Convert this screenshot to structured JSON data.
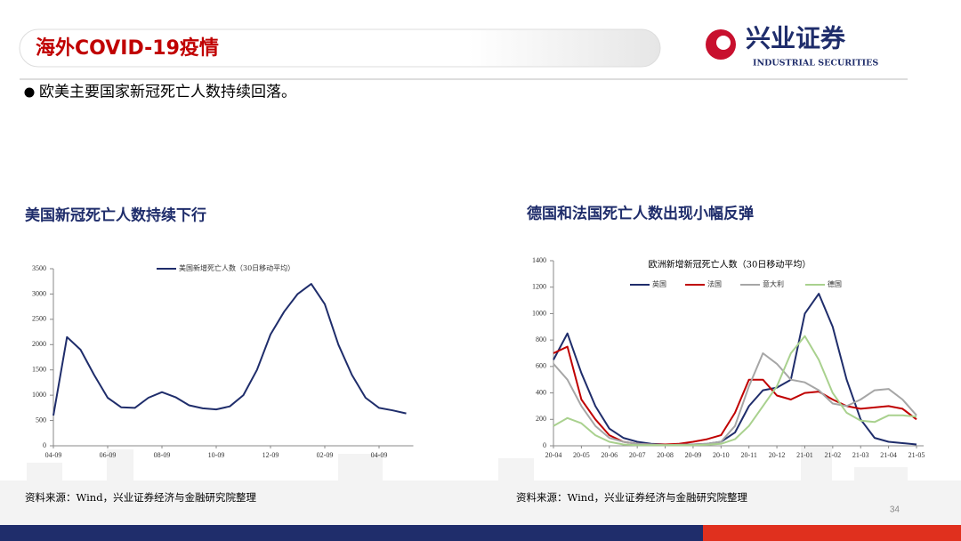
{
  "header": {
    "title": "海外COVID-19疫情"
  },
  "logo": {
    "name": "兴业证券",
    "english": "INDUSTRIAL SECURITIES"
  },
  "bullet": "欧美主要国家新冠死亡人数持续回落。",
  "panels": [
    {
      "heading": "美国新冠死亡人数持续下行",
      "source": "资料来源：Wind，兴业证券经济与金融研究院整理"
    },
    {
      "heading": "德国和法国死亡人数出现小幅反弹",
      "source": "资料来源：Wind，兴业证券经济与金融研究院整理"
    }
  ],
  "page_number": 34,
  "chart_data": [
    {
      "type": "line",
      "categories": [
        "04-09",
        null,
        null,
        null,
        "06-09",
        null,
        null,
        null,
        "08-09",
        null,
        null,
        null,
        "10-09",
        null,
        null,
        null,
        "12-09",
        null,
        null,
        null,
        "02-09",
        null,
        null,
        null,
        "04-09",
        null,
        null
      ],
      "series": [
        {
          "name": "美国新增死亡人数（30日移动平均）",
          "color": "#1f2d6b",
          "values": [
            600,
            2150,
            1900,
            1400,
            950,
            760,
            750,
            950,
            1060,
            960,
            800,
            740,
            720,
            780,
            1000,
            1500,
            2200,
            2650,
            3000,
            3200,
            2800,
            2000,
            1400,
            950,
            750,
            700,
            640
          ]
        }
      ],
      "ylim": [
        0,
        3500
      ],
      "yticks": [
        0,
        500,
        1000,
        1500,
        2000,
        2500,
        3000,
        3500
      ],
      "grid": false
    },
    {
      "type": "line",
      "title": "欧洲新增新冠死亡人数（30日移动平均）",
      "categories": [
        "20-04",
        null,
        "20-05",
        null,
        "20-06",
        null,
        "20-07",
        null,
        "20-08",
        null,
        "20-09",
        null,
        "20-10",
        null,
        "20-11",
        null,
        "20-12",
        null,
        "21-01",
        null,
        "21-02",
        null,
        "21-03",
        null,
        "21-04",
        null,
        "21-05"
      ],
      "series": [
        {
          "name": "英国",
          "color": "#1f2d6b",
          "values": [
            650,
            850,
            550,
            300,
            130,
            60,
            30,
            15,
            10,
            10,
            10,
            15,
            30,
            100,
            300,
            420,
            440,
            500,
            1000,
            1150,
            900,
            500,
            200,
            60,
            30,
            20,
            10
          ]
        },
        {
          "name": "法国",
          "color": "#c00000",
          "values": [
            700,
            750,
            350,
            200,
            80,
            30,
            15,
            10,
            10,
            15,
            30,
            50,
            80,
            250,
            500,
            500,
            380,
            350,
            400,
            410,
            350,
            300,
            280,
            290,
            300,
            280,
            200
          ]
        },
        {
          "name": "意大利",
          "color": "#a6a6a6",
          "values": [
            620,
            500,
            300,
            150,
            60,
            30,
            15,
            10,
            5,
            8,
            10,
            15,
            30,
            150,
            450,
            700,
            620,
            500,
            480,
            420,
            320,
            300,
            350,
            420,
            430,
            350,
            230
          ]
        },
        {
          "name": "德国",
          "color": "#a9d18e",
          "values": [
            150,
            210,
            170,
            80,
            30,
            10,
            5,
            5,
            5,
            5,
            5,
            8,
            15,
            50,
            150,
            300,
            450,
            700,
            830,
            650,
            400,
            250,
            190,
            180,
            230,
            230,
            220
          ]
        }
      ],
      "ylim": [
        0,
        1400
      ],
      "yticks": [
        0,
        200,
        400,
        600,
        800,
        1000,
        1200,
        1400
      ],
      "grid": false
    }
  ]
}
